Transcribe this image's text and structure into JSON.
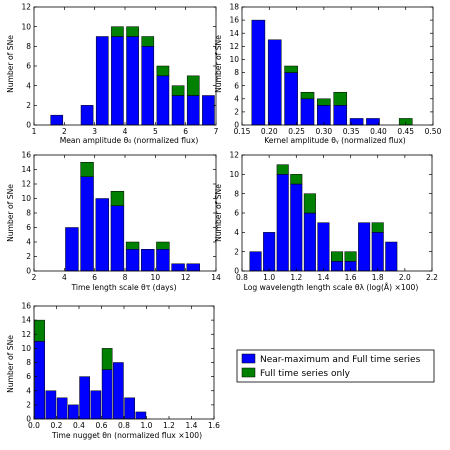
{
  "colors": {
    "series_a": "#0000ff",
    "series_b": "#008000",
    "axis": "#000000",
    "background": "#ffffff"
  },
  "legend": {
    "placement": "lower-right-empty-slot",
    "entries": [
      "Near-maximum and Full time series",
      "Full time series only"
    ]
  },
  "chart_data": [
    {
      "type": "bar",
      "stacked": true,
      "title": "",
      "xlabel": "Mean amplitude θ₀ (normalized flux)",
      "ylabel": "Number of SNe",
      "xlim": [
        1,
        7
      ],
      "ylim": [
        0,
        12
      ],
      "xticks": [
        "1",
        "2",
        "3",
        "4",
        "5",
        "6",
        "7"
      ],
      "yticks": [
        "0",
        "2",
        "4",
        "6",
        "8",
        "10",
        "12"
      ],
      "x": [
        1.75,
        2.75,
        3.25,
        3.75,
        4.25,
        4.75,
        5.25,
        5.75,
        6.25,
        6.75
      ],
      "bar_width": 0.4,
      "series": [
        {
          "name": "Near-maximum and Full time series",
          "values": [
            1,
            2,
            9,
            9,
            9,
            8,
            5,
            3,
            3,
            3
          ]
        },
        {
          "name": "Full time series only",
          "values": [
            0,
            0,
            0,
            1,
            1,
            1,
            1,
            1,
            2,
            0
          ]
        }
      ]
    },
    {
      "type": "bar",
      "stacked": true,
      "title": "",
      "xlabel": "Kernel amplitude θᵧ (normalized flux)",
      "ylabel": "Number of SNe",
      "xlim": [
        0.15,
        0.5
      ],
      "ylim": [
        0,
        18
      ],
      "xticks": [
        "0.15",
        "0.20",
        "0.25",
        "0.30",
        "0.35",
        "0.40",
        "0.45",
        "0.50"
      ],
      "yticks": [
        "0",
        "2",
        "4",
        "6",
        "8",
        "10",
        "12",
        "14",
        "16",
        "18"
      ],
      "x": [
        0.18,
        0.21,
        0.24,
        0.27,
        0.3,
        0.33,
        0.36,
        0.39,
        0.45
      ],
      "bar_width": 0.024,
      "series": [
        {
          "name": "Near-maximum and Full time series",
          "values": [
            16,
            13,
            8,
            4,
            3,
            3,
            1,
            1,
            0
          ]
        },
        {
          "name": "Full time series only",
          "values": [
            0,
            0,
            1,
            1,
            1,
            2,
            0,
            0,
            1
          ]
        }
      ]
    },
    {
      "type": "bar",
      "stacked": true,
      "title": "",
      "xlabel": "Time length scale θτ (days)",
      "ylabel": "Number of SNe",
      "xlim": [
        2,
        14
      ],
      "ylim": [
        0,
        16
      ],
      "xticks": [
        "2",
        "4",
        "6",
        "8",
        "10",
        "12",
        "14"
      ],
      "yticks": [
        "0",
        "2",
        "4",
        "6",
        "8",
        "10",
        "12",
        "14",
        "16"
      ],
      "x": [
        4.5,
        5.5,
        6.5,
        7.5,
        8.5,
        9.5,
        10.5,
        11.5,
        12.5
      ],
      "bar_width": 0.85,
      "series": [
        {
          "name": "Near-maximum and Full time series",
          "values": [
            6,
            13,
            10,
            9,
            3,
            3,
            3,
            1,
            1
          ]
        },
        {
          "name": "Full time series only",
          "values": [
            0,
            2,
            0,
            2,
            1,
            0,
            1,
            0,
            0
          ]
        }
      ]
    },
    {
      "type": "bar",
      "stacked": true,
      "title": "",
      "xlabel": "Log wavelength length scale θλ (log(Å) ×100)",
      "ylabel": "Number of SNe",
      "xlim": [
        0.8,
        2.2
      ],
      "ylim": [
        0,
        12
      ],
      "xticks": [
        "0.8",
        "1.0",
        "1.2",
        "1.4",
        "1.6",
        "1.8",
        "2.0",
        "2.2"
      ],
      "yticks": [
        "0",
        "2",
        "4",
        "6",
        "8",
        "10",
        "12"
      ],
      "x": [
        0.9,
        1.0,
        1.1,
        1.2,
        1.3,
        1.4,
        1.5,
        1.6,
        1.7,
        1.8,
        1.9
      ],
      "bar_width": 0.085,
      "series": [
        {
          "name": "Near-maximum and Full time series",
          "values": [
            2,
            4,
            10,
            9,
            6,
            5,
            1,
            1,
            5,
            4,
            3
          ]
        },
        {
          "name": "Full time series only",
          "values": [
            0,
            0,
            1,
            1,
            2,
            0,
            1,
            1,
            0,
            1,
            0
          ]
        }
      ]
    },
    {
      "type": "bar",
      "stacked": true,
      "title": "",
      "xlabel": "Time nugget θn (normalized flux ×100)",
      "ylabel": "Number of SNe",
      "xlim": [
        0,
        1.6
      ],
      "ylim": [
        0,
        16
      ],
      "xticks": [
        "0.0",
        "0.2",
        "0.4",
        "0.6",
        "0.8",
        "1.0",
        "1.2",
        "1.4",
        "1.6"
      ],
      "yticks": [
        "0",
        "2",
        "4",
        "6",
        "8",
        "10",
        "12",
        "14",
        "16"
      ],
      "x": [
        0.05,
        0.15,
        0.25,
        0.35,
        0.45,
        0.55,
        0.65,
        0.75,
        0.85,
        0.95,
        1.05,
        1.15,
        1.25
      ],
      "bar_width": 0.09,
      "series": [
        {
          "name": "Near-maximum and Full time series",
          "values": [
            11,
            4,
            3,
            2,
            6,
            4,
            7,
            8,
            3,
            1,
            0,
            0,
            0
          ]
        },
        {
          "name": "Full time series only",
          "values": [
            3,
            0,
            0,
            0,
            0,
            0,
            3,
            0,
            0,
            0,
            0,
            0,
            0
          ]
        }
      ]
    }
  ]
}
